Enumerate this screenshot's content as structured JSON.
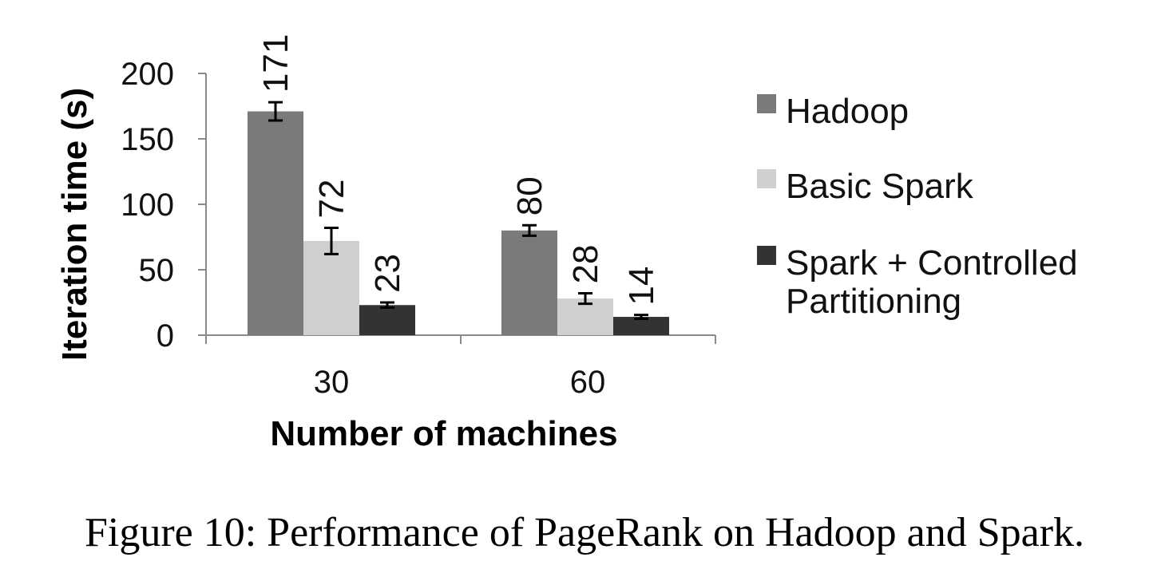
{
  "chart_data": {
    "type": "bar",
    "categories": [
      "30",
      "60"
    ],
    "series": [
      {
        "name": "Hadoop",
        "values": [
          171,
          80
        ],
        "error": [
          7,
          4
        ],
        "color": "#7a7a7a"
      },
      {
        "name": "Basic Spark",
        "values": [
          72,
          28
        ],
        "error": [
          10,
          4
        ],
        "color": "#cfcfcf"
      },
      {
        "name": "Spark + Controlled Partitioning",
        "values": [
          23,
          14
        ],
        "error": [
          2,
          1.5
        ],
        "color": "#333333"
      }
    ],
    "data_labels": [
      [
        "171",
        "80"
      ],
      [
        "72",
        "28"
      ],
      [
        "23",
        "14"
      ]
    ],
    "legend_lines": [
      [
        "Hadoop"
      ],
      [
        "Basic Spark"
      ],
      [
        "Spark + Controlled",
        "Partitioning"
      ]
    ],
    "xlabel": "Number of machines",
    "ylabel": "Iteration time (s)",
    "yticks": [
      0,
      50,
      100,
      150,
      200
    ],
    "ylim": [
      0,
      200
    ],
    "grid": false,
    "legend_position": "right"
  },
  "caption": "Figure 10: Performance of PageRank on Hadoop and Spark."
}
